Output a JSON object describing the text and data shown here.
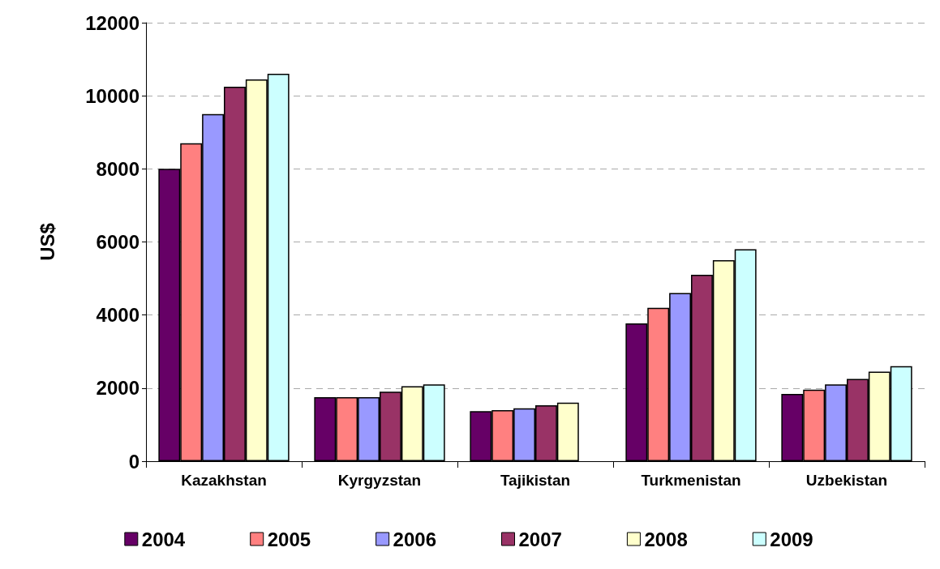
{
  "chart_data": {
    "type": "bar",
    "ylabel": "US$",
    "categories": [
      "Kazakhstan",
      "Kyrgyzstan",
      "Tajikistan",
      "Turkmenistan",
      "Uzbekistan"
    ],
    "series": [
      {
        "name": "2004",
        "color": "#660066",
        "values": [
          8000,
          1750,
          1370,
          3770,
          1840
        ]
      },
      {
        "name": "2005",
        "color": "#ff8080",
        "values": [
          8700,
          1750,
          1400,
          4200,
          1960
        ]
      },
      {
        "name": "2006",
        "color": "#9999ff",
        "values": [
          9500,
          1750,
          1450,
          4600,
          2100
        ]
      },
      {
        "name": "2007",
        "color": "#993366",
        "values": [
          10250,
          1900,
          1530,
          5100,
          2250
        ]
      },
      {
        "name": "2008",
        "color": "#ffffcc",
        "values": [
          10450,
          2050,
          1600,
          5500,
          2450
        ]
      },
      {
        "name": "2009",
        "color": "#ccffff",
        "values": [
          10600,
          2100,
          null,
          5800,
          2600
        ]
      }
    ],
    "ylim": [
      0,
      12000
    ],
    "yticks": [
      0,
      2000,
      4000,
      6000,
      8000,
      10000,
      12000
    ],
    "grid": "y",
    "legend": "bottom"
  }
}
